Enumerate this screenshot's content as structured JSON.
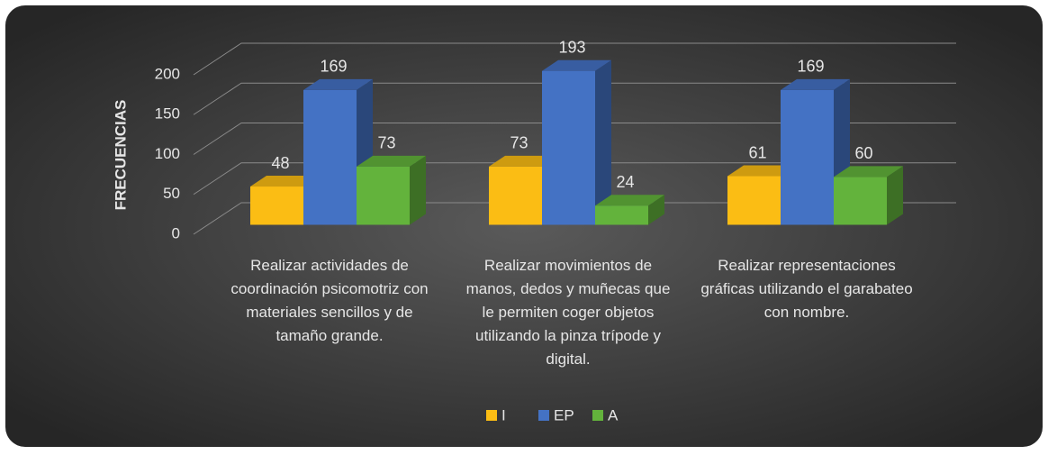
{
  "chart_data": {
    "type": "bar3d",
    "y_label": "FRECUENCIAS",
    "categories": [
      "Realizar actividades de coordinación psicomotriz con materiales sencillos y de tamaño grande.",
      "Realizar movimientos de manos, dedos y muñecas que le permiten coger objetos utilizando la pinza trípode y digital.",
      "Realizar representaciones gráficas utilizando el garabateo con nombre."
    ],
    "series": [
      {
        "name": "I",
        "color": "#fbbd14",
        "values": [
          48,
          73,
          61
        ]
      },
      {
        "name": "EP",
        "color": "#4472c4",
        "values": [
          169,
          193,
          169
        ]
      },
      {
        "name": "A",
        "color": "#63b33c",
        "values": [
          73,
          24,
          60
        ]
      }
    ],
    "ylim": [
      0,
      200
    ],
    "yticks": [
      0,
      50,
      100,
      150,
      200
    ],
    "grid": true,
    "legend": "bottom"
  }
}
